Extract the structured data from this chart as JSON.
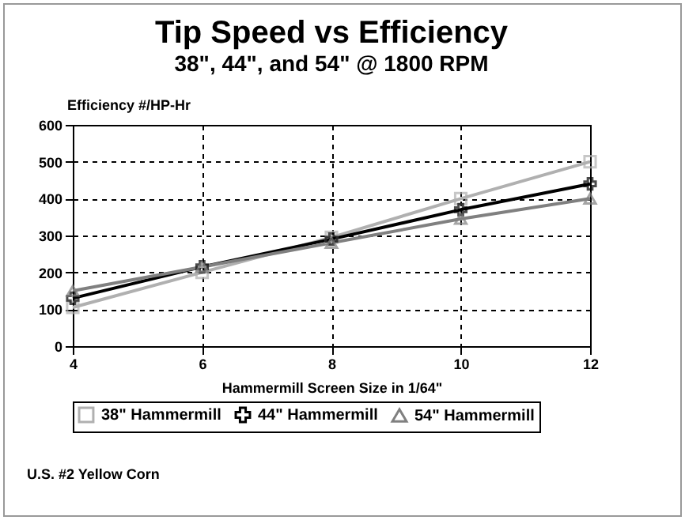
{
  "chart_data": {
    "type": "line",
    "title": "Tip Speed vs Efficiency",
    "subtitle": "38\", 44\", and 54\" @ 1800 RPM",
    "xlabel": "Hammermill Screen Size in 1/64\"",
    "ylabel": "Efficiency #/HP-Hr",
    "annotations": [
      "U.S. #2 Yellow Corn"
    ],
    "x": [
      4,
      6,
      8,
      10,
      12
    ],
    "series": [
      {
        "name": "38\" Hammermill",
        "color": "#b0b0b0",
        "marker": "square",
        "values": [
          105,
          200,
          295,
          400,
          500
        ]
      },
      {
        "name": "44\" Hammermill",
        "color": "#000000",
        "marker": "cross",
        "values": [
          130,
          215,
          290,
          370,
          440
        ]
      },
      {
        "name": "54\" Hammermill",
        "color": "#808080",
        "marker": "triangle",
        "values": [
          150,
          215,
          280,
          345,
          400
        ]
      }
    ],
    "xlim": [
      4,
      12
    ],
    "xticks": [
      4,
      6,
      8,
      10,
      12
    ],
    "ylim": [
      0,
      600
    ],
    "yticks": [
      0,
      100,
      200,
      300,
      400,
      500,
      600
    ],
    "grid": true,
    "legend": "bottom"
  }
}
